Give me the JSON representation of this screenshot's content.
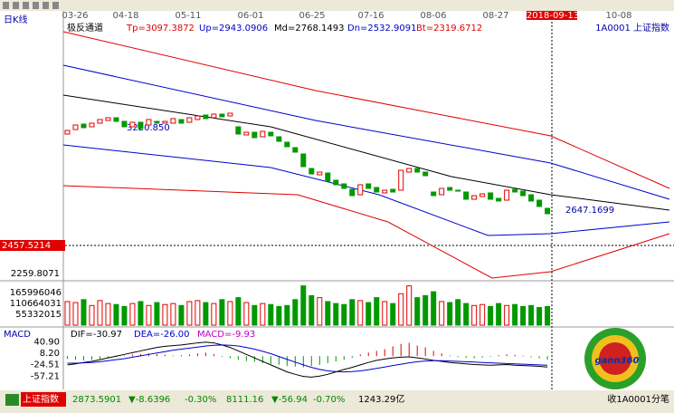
{
  "toolbar_dates": [
    "03-26",
    "04-18",
    "05-11",
    "06-01",
    "06-25",
    "07-16",
    "08-06",
    "08-27",
    "2018-09-13",
    "10-08"
  ],
  "period_label": "日K线",
  "indicator": {
    "name": "极反通道",
    "params": [
      "Tp=3097.3872",
      "Up=2943.0906",
      "Md=2768.1493",
      "Dn=2532.9091",
      "Bt=2319.6712"
    ],
    "symbol": "1A0001  上证指数"
  },
  "price_labels": {
    "high": "3220.850",
    "low_mark": 2647.1699,
    "cross": 2457.5214,
    "axis_low": 2259.8071
  },
  "chart_data": {
    "type": "candlestick",
    "xlim": [
      -0.5,
      74
    ],
    "ylim": [
      2250,
      3650
    ],
    "open": [
      3060,
      3085,
      3115,
      3100,
      3120,
      3135,
      3150,
      3130,
      3100,
      3125,
      3110,
      3130,
      3120,
      3120,
      3140,
      3125,
      3140,
      3165,
      3150,
      3170,
      3160,
      3100,
      3055,
      3070,
      3045,
      3070,
      3045,
      3015,
      2985,
      2950,
      2870,
      2835,
      2845,
      2805,
      2785,
      2755,
      2725,
      2785,
      2765,
      2735,
      2755,
      2750,
      2850,
      2870,
      2850,
      2740,
      2725,
      2765,
      2750,
      2740,
      2700,
      2715,
      2735,
      2705,
      2695,
      2755,
      2745,
      2725,
      2695,
      2650
    ],
    "close": [
      3080,
      3110,
      3095,
      3120,
      3140,
      3150,
      3130,
      3100,
      3125,
      3090,
      3140,
      3120,
      3130,
      3145,
      3120,
      3150,
      3160,
      3145,
      3170,
      3155,
      3175,
      3060,
      3070,
      3040,
      3075,
      3050,
      3020,
      2990,
      2960,
      2880,
      2840,
      2850,
      2800,
      2780,
      2760,
      2720,
      2780,
      2760,
      2740,
      2750,
      2740,
      2860,
      2870,
      2850,
      2830,
      2720,
      2760,
      2750,
      2745,
      2700,
      2720,
      2730,
      2700,
      2690,
      2750,
      2740,
      2720,
      2690,
      2660,
      2620
    ],
    "up_color": "#e00000",
    "down_color": "#009900",
    "channels": [
      {
        "name": "Tp",
        "color": "#e00000",
        "x": [
          -0.5,
          30.5,
          59.4,
          74
        ],
        "values": [
          3625,
          3300,
          3050,
          2760
        ]
      },
      {
        "name": "Up",
        "color": "#0000cc",
        "x": [
          -0.5,
          30.5,
          59.4,
          74
        ],
        "values": [
          3440,
          3135,
          2900,
          2700
        ]
      },
      {
        "name": "Md",
        "color": "#000000",
        "x": [
          -0.5,
          25,
          47.2,
          59.4,
          74
        ],
        "values": [
          3275,
          3100,
          2825,
          2725,
          2640
        ]
      },
      {
        "name": "Dn",
        "color": "#0000cc",
        "x": [
          -0.5,
          25,
          38.3,
          51.7,
          59.4,
          74
        ],
        "values": [
          3000,
          2875,
          2725,
          2500,
          2510,
          2575
        ]
      },
      {
        "name": "Bt",
        "color": "#e00000",
        "x": [
          -0.5,
          14,
          28.3,
          39.4,
          52.2,
          59.4,
          74
        ],
        "values": [
          2775,
          2750,
          2725,
          2575,
          2265,
          2300,
          2510
        ]
      }
    ],
    "volume": {
      "ylim": [
        0,
        221328060
      ],
      "yticks": [
        55332015,
        110664031,
        165996046
      ],
      "values": [
        120000000,
        115000000,
        130000000,
        100000000,
        125000000,
        110000000,
        105000000,
        95000000,
        110000000,
        120000000,
        100000000,
        115000000,
        105000000,
        110000000,
        100000000,
        120000000,
        125000000,
        115000000,
        110000000,
        130000000,
        120000000,
        140000000,
        115000000,
        100000000,
        110000000,
        105000000,
        95000000,
        100000000,
        130000000,
        200000000,
        150000000,
        140000000,
        120000000,
        110000000,
        105000000,
        130000000,
        125000000,
        115000000,
        140000000,
        120000000,
        110000000,
        160000000,
        200000000,
        140000000,
        150000000,
        170000000,
        120000000,
        115000000,
        130000000,
        110000000,
        100000000,
        105000000,
        95000000,
        110000000,
        100000000,
        105000000,
        95000000,
        100000000,
        90000000,
        95000000
      ]
    },
    "macd": {
      "title": "MACD",
      "labels": [
        "DIF=-30.97",
        "DEA=-26.00",
        "MACD=-9.93"
      ],
      "ylim": [
        -90,
        55
      ],
      "yticks": [
        {
          "value": 40.9,
          "label": "40.90"
        },
        {
          "value": 8.2,
          "label": "8.20"
        },
        -24.51,
        -57.21
      ],
      "hist": [
        -8,
        -10,
        -12,
        -10,
        -8,
        -5,
        -2,
        2,
        5,
        6,
        8,
        6,
        4,
        2,
        3,
        5,
        8,
        10,
        6,
        -2,
        -6,
        -10,
        -14,
        -16,
        -20,
        -22,
        -25,
        -28,
        -30,
        -32,
        -28,
        -25,
        -20,
        -15,
        -10,
        -5,
        5,
        10,
        15,
        20,
        28,
        35,
        38,
        30,
        25,
        15,
        8,
        2,
        -3,
        -5,
        -6,
        -4,
        -2,
        3,
        5,
        4,
        2,
        -3,
        -6,
        -9.93
      ],
      "dif": [
        -25,
        -22,
        -18,
        -15,
        -10,
        -5,
        0,
        5,
        10,
        15,
        20,
        25,
        28,
        30,
        32,
        35,
        38,
        40,
        38,
        32,
        25,
        15,
        5,
        -5,
        -15,
        -25,
        -35,
        -45,
        -52,
        -58,
        -60,
        -57,
        -52,
        -45,
        -38,
        -32,
        -25,
        -18,
        -12,
        -8,
        -5,
        -3,
        -2,
        -5,
        -8,
        -12,
        -15,
        -18,
        -20,
        -22,
        -24,
        -25,
        -26,
        -25,
        -24,
        -26,
        -27,
        -28,
        -29,
        -30.97
      ],
      "dea": [
        -20,
        -20,
        -19,
        -18,
        -16,
        -13,
        -10,
        -7,
        -3,
        1,
        5,
        9,
        13,
        17,
        20,
        23,
        26,
        29,
        31,
        32,
        31,
        29,
        25,
        20,
        14,
        7,
        -1,
        -9,
        -17,
        -25,
        -32,
        -38,
        -42,
        -44,
        -45,
        -44,
        -42,
        -39,
        -35,
        -31,
        -27,
        -23,
        -19,
        -16,
        -14,
        -13,
        -13,
        -14,
        -15,
        -16,
        -17,
        -18,
        -19,
        -20,
        -21,
        -22,
        -23,
        -24,
        -25,
        -26
      ]
    }
  },
  "status": {
    "name": "上证指数",
    "items": [
      {
        "text": "2873.5901",
        "color": "#008800"
      },
      {
        "text": "▼-8.6396",
        "color": "#008800"
      },
      {
        "text": "-0.30%",
        "color": "#008800"
      },
      {
        "text": "8111.16",
        "color": "#008800"
      },
      {
        "text": "▼-56.94",
        "color": "#008800"
      },
      {
        "text": "-0.70%",
        "color": "#008800"
      },
      {
        "text": "1243.29亿",
        "color": "#000000"
      }
    ],
    "right": "收1A0001分笔"
  },
  "logo": "gann360"
}
